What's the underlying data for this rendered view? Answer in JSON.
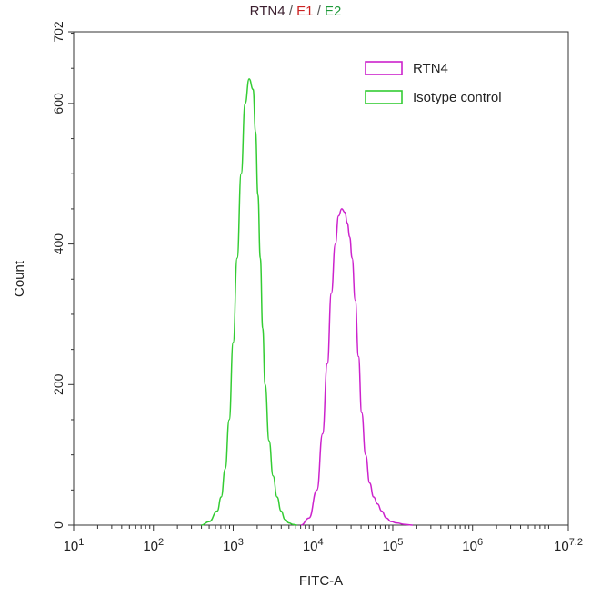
{
  "title": {
    "parts": [
      {
        "text": "RTN4",
        "color": "#3a1e2e"
      },
      {
        "text": " / ",
        "color": "#555555"
      },
      {
        "text": "E1",
        "color": "#cc2222"
      },
      {
        "text": " / ",
        "color": "#555555"
      },
      {
        "text": "E2",
        "color": "#1f9a3a"
      }
    ]
  },
  "chart_data": {
    "type": "line",
    "title": "RTN4 / E1 / E2",
    "xlabel": "FITC-A",
    "ylabel": "Count",
    "x_scale": "log",
    "xlim": [
      1,
      7.2
    ],
    "ylim": [
      0,
      702
    ],
    "x_ticks": [
      {
        "exp": 1,
        "base": "10",
        "sup": "1"
      },
      {
        "exp": 2,
        "base": "10",
        "sup": "2"
      },
      {
        "exp": 3,
        "base": "10",
        "sup": "3"
      },
      {
        "exp": 4,
        "base": "10",
        "sup": "4"
      },
      {
        "exp": 5,
        "base": "10",
        "sup": "5"
      },
      {
        "exp": 6,
        "base": "10",
        "sup": "6"
      },
      {
        "exp": 7.2,
        "base": "10",
        "sup": "7.2"
      }
    ],
    "y_ticks": [
      0,
      200,
      400,
      600,
      702
    ],
    "grid": false,
    "legend_position": "top-right",
    "series": [
      {
        "name": "RTN4",
        "color": "#cc22cc",
        "log10_x": [
          3.85,
          3.95,
          4.05,
          4.12,
          4.18,
          4.23,
          4.28,
          4.32,
          4.36,
          4.4,
          4.43,
          4.46,
          4.49,
          4.53,
          4.57,
          4.61,
          4.66,
          4.71,
          4.76,
          4.81,
          4.86,
          4.92,
          4.98,
          5.05,
          5.15,
          5.25
        ],
        "y": [
          0,
          10,
          50,
          130,
          230,
          330,
          400,
          440,
          450,
          445,
          430,
          410,
          380,
          320,
          240,
          160,
          100,
          60,
          40,
          30,
          20,
          10,
          5,
          3,
          1,
          0
        ]
      },
      {
        "name": "Isotype control",
        "color": "#33cc33",
        "log10_x": [
          2.6,
          2.7,
          2.8,
          2.85,
          2.9,
          2.95,
          3.0,
          3.05,
          3.1,
          3.15,
          3.2,
          3.25,
          3.28,
          3.31,
          3.34,
          3.37,
          3.4,
          3.45,
          3.5,
          3.55,
          3.6,
          3.65,
          3.7,
          3.75,
          3.8
        ],
        "y": [
          0,
          5,
          20,
          40,
          80,
          150,
          260,
          380,
          500,
          600,
          635,
          620,
          560,
          470,
          380,
          280,
          200,
          120,
          70,
          40,
          20,
          8,
          3,
          1,
          0
        ]
      }
    ]
  }
}
